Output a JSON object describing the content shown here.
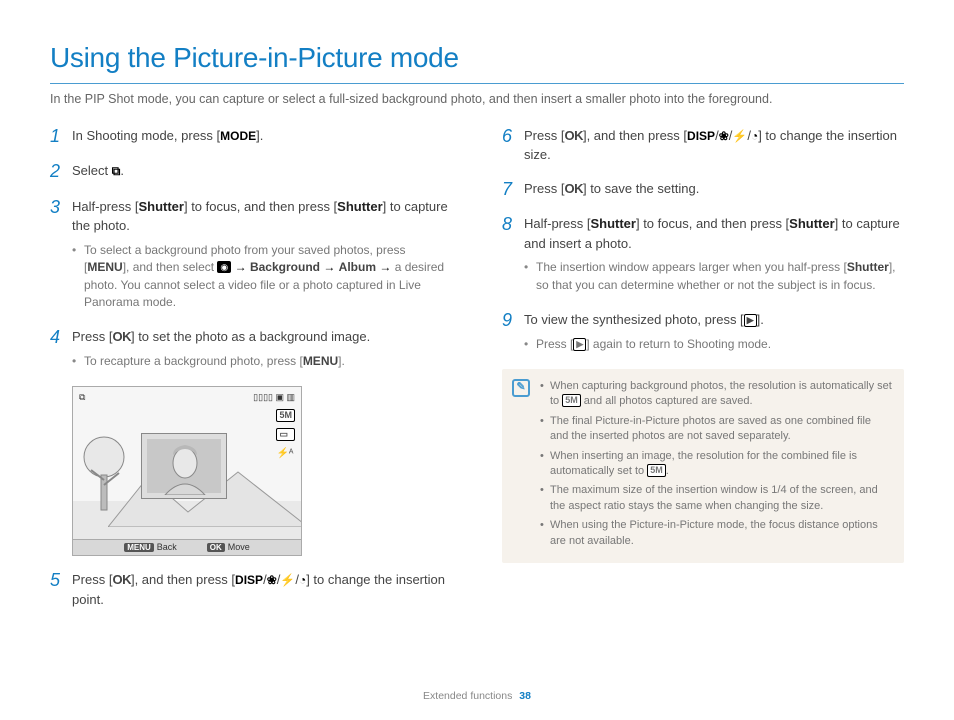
{
  "title": "Using the Picture-in-Picture mode",
  "intro": "In the PIP Shot mode, you can capture or select a full-sized background photo, and then insert a smaller photo into the foreground.",
  "colors": {
    "accent": "#137fc4",
    "rule": "#4a9cd1",
    "body": "#555555",
    "muted": "#777777",
    "note_bg": "#f6f2ec"
  },
  "glyphs": {
    "mode": "MODE",
    "ok": "OK",
    "menu": "MENU",
    "disp": "DISP",
    "shutter": "Shutter",
    "arrow": "→",
    "5m": "5M",
    "flower": "❀",
    "bolt": "⚡",
    "timer": "◔",
    "play": "▶",
    "camera": "◉",
    "pip": "⧉"
  },
  "left_steps": [
    {
      "n": "1",
      "parts": [
        {
          "t": "In Shooting mode, press ["
        },
        {
          "g": "mode",
          "bold": true
        },
        {
          "t": "]."
        }
      ]
    },
    {
      "n": "2",
      "parts": [
        {
          "t": "Select "
        },
        {
          "g": "pip",
          "cls": "glyph"
        },
        {
          "t": "."
        }
      ]
    },
    {
      "n": "3",
      "parts": [
        {
          "t": "Half-press ["
        },
        {
          "b": "Shutter"
        },
        {
          "t": "] to focus, and then press ["
        },
        {
          "b": "Shutter"
        },
        {
          "t": "] to capture the photo."
        }
      ],
      "subs": [
        {
          "parts": [
            {
              "t": "To select a background photo from your saved photos, press ["
            },
            {
              "b": "MENU"
            },
            {
              "t": "], and then select "
            },
            {
              "g": "camera",
              "cls": "glyph-fill"
            },
            {
              "t": " "
            },
            {
              "g": "arrow"
            },
            {
              "t": " "
            },
            {
              "b": "Background"
            },
            {
              "t": " "
            },
            {
              "g": "arrow"
            },
            {
              "t": " "
            },
            {
              "b": "Album"
            },
            {
              "t": " "
            },
            {
              "g": "arrow"
            },
            {
              "t": " a desired photo. You cannot select a video file or a photo captured in Live Panorama mode."
            }
          ]
        }
      ]
    },
    {
      "n": "4",
      "parts": [
        {
          "t": "Press ["
        },
        {
          "g": "ok",
          "bold": true,
          "cls": "ok-glyph"
        },
        {
          "t": "] to set the photo as a background image."
        }
      ],
      "subs": [
        {
          "parts": [
            {
              "t": "To recapture a background photo, press ["
            },
            {
              "b": "MENU"
            },
            {
              "t": "]."
            }
          ]
        }
      ]
    }
  ],
  "left_step5": {
    "n": "5",
    "parts": [
      {
        "t": "Press ["
      },
      {
        "g": "ok",
        "bold": true,
        "cls": "ok-glyph"
      },
      {
        "t": "], and then press ["
      },
      {
        "g": "disp",
        "bold": true
      },
      {
        "t": "/"
      },
      {
        "g": "flower"
      },
      {
        "t": "/"
      },
      {
        "g": "bolt"
      },
      {
        "t": "/"
      },
      {
        "g": "timer"
      },
      {
        "t": "] to change the insertion point."
      }
    ]
  },
  "right_steps": [
    {
      "n": "6",
      "parts": [
        {
          "t": "Press ["
        },
        {
          "g": "ok",
          "bold": true,
          "cls": "ok-glyph"
        },
        {
          "t": "], and then press ["
        },
        {
          "g": "disp",
          "bold": true
        },
        {
          "t": "/"
        },
        {
          "g": "flower"
        },
        {
          "t": "/"
        },
        {
          "g": "bolt"
        },
        {
          "t": "/"
        },
        {
          "g": "timer"
        },
        {
          "t": "] to change the insertion size."
        }
      ]
    },
    {
      "n": "7",
      "parts": [
        {
          "t": "Press ["
        },
        {
          "g": "ok",
          "bold": true,
          "cls": "ok-glyph"
        },
        {
          "t": "] to save the setting."
        }
      ]
    },
    {
      "n": "8",
      "parts": [
        {
          "t": "Half-press ["
        },
        {
          "b": "Shutter"
        },
        {
          "t": "] to focus, and then press ["
        },
        {
          "b": "Shutter"
        },
        {
          "t": "] to capture and insert a photo."
        }
      ],
      "subs": [
        {
          "parts": [
            {
              "t": "The insertion window appears larger when you half-press ["
            },
            {
              "b": "Shutter"
            },
            {
              "t": "], so that you can determine whether or not the subject is in focus."
            }
          ]
        }
      ]
    },
    {
      "n": "9",
      "parts": [
        {
          "t": "To view the synthesized photo, press ["
        },
        {
          "g": "play",
          "cls": "glyph-box"
        },
        {
          "t": "]."
        }
      ],
      "subs": [
        {
          "parts": [
            {
              "t": "Press ["
            },
            {
              "g": "play",
              "cls": "glyph-box"
            },
            {
              "t": "] again to return to Shooting mode."
            }
          ]
        }
      ]
    }
  ],
  "notes": [
    {
      "parts": [
        {
          "t": "When capturing background photos, the resolution is automatically set to "
        },
        {
          "g": "5m",
          "cls": "glyph-box"
        },
        {
          "t": " and all photos captured are saved."
        }
      ]
    },
    {
      "parts": [
        {
          "t": "The final Picture-in-Picture photos are saved as one combined file and the inserted photos are not saved separately."
        }
      ]
    },
    {
      "parts": [
        {
          "t": "When inserting an image, the resolution for the combined file is automatically set to "
        },
        {
          "g": "5m",
          "cls": "glyph-box"
        },
        {
          "t": "."
        }
      ]
    },
    {
      "parts": [
        {
          "t": "The maximum size of the insertion window is 1/4 of the screen, and the aspect ratio stays the same when changing the size."
        }
      ]
    },
    {
      "parts": [
        {
          "t": "When using the Picture-in-Picture mode, the focus distance options are not available."
        }
      ]
    }
  ],
  "illus": {
    "top_left_icon": "⧉",
    "top_right": "▯▯▯▯  ▣  ▥",
    "side_icons": [
      "5M",
      "▭",
      "⚡ᴬ"
    ],
    "bottom_back_key": "MENU",
    "bottom_back": "Back",
    "bottom_move_key": "OK",
    "bottom_move": "Move"
  },
  "footer": {
    "section": "Extended functions",
    "page": "38"
  }
}
